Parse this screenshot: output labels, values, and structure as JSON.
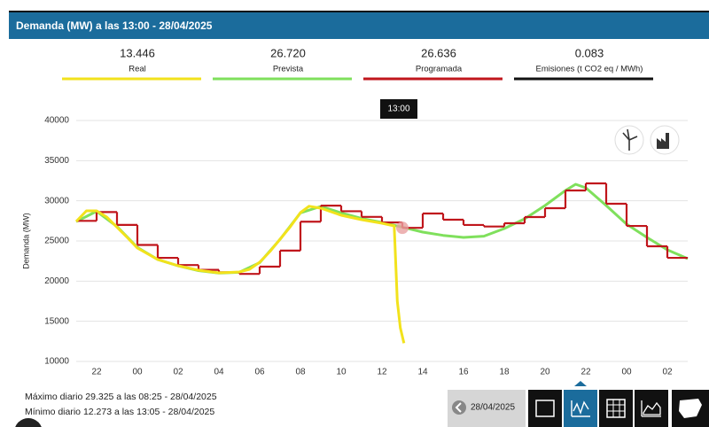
{
  "header": {
    "title": "Demanda (MW) a las 13:00 - 28/04/2025"
  },
  "chart_data": {
    "type": "line",
    "y_label": "Demanda (MW)",
    "tooltip": "13:00",
    "emissions": {
      "name": "Emisiones (t CO2 eq / MWh)",
      "current": "0.083",
      "color": "#111111"
    },
    "xlim": [
      21,
      51
    ],
    "xticks": [
      {
        "value": 22,
        "label": "22"
      },
      {
        "value": 24,
        "label": "00"
      },
      {
        "value": 26,
        "label": "02"
      },
      {
        "value": 28,
        "label": "04"
      },
      {
        "value": 30,
        "label": "06"
      },
      {
        "value": 32,
        "label": "08"
      },
      {
        "value": 34,
        "label": "10"
      },
      {
        "value": 36,
        "label": "12"
      },
      {
        "value": 38,
        "label": "14"
      },
      {
        "value": 40,
        "label": "16"
      },
      {
        "value": 42,
        "label": "18"
      },
      {
        "value": 44,
        "label": "20"
      },
      {
        "value": 46,
        "label": "22"
      },
      {
        "value": 48,
        "label": "00"
      },
      {
        "value": 50,
        "label": "02"
      }
    ],
    "ylim": [
      10000,
      40000
    ],
    "yticks": [
      10000,
      15000,
      20000,
      25000,
      30000,
      35000,
      40000
    ],
    "grid": true,
    "series": [
      {
        "name": "Real",
        "current": "13.446",
        "color": "#f2e21c",
        "style": "line",
        "x": [
          21,
          21.5,
          22,
          22.5,
          23.5,
          24,
          25,
          26,
          27,
          28,
          29,
          29.5,
          30,
          30.5,
          31.5,
          32,
          32.42,
          33,
          34,
          35,
          36,
          36.6,
          36.75,
          36.9,
          37.08
        ],
        "values": [
          27430,
          28750,
          28750,
          27980,
          25440,
          24120,
          22690,
          21910,
          21360,
          21030,
          21140,
          21470,
          22350,
          23680,
          26760,
          28530,
          29325,
          29080,
          28200,
          27650,
          27210,
          26870,
          17500,
          14190,
          12273
        ]
      },
      {
        "name": "Prevista",
        "current": "26.720",
        "color": "#7fe05c",
        "style": "line",
        "x": [
          21,
          22,
          23,
          24,
          25,
          26,
          27,
          28,
          29,
          30,
          31,
          32,
          33,
          34,
          35,
          36,
          37,
          38,
          39,
          40,
          41,
          42,
          43,
          44,
          45,
          45.5,
          46,
          47,
          48,
          49,
          50,
          51
        ],
        "values": [
          27400,
          28700,
          26800,
          24200,
          22700,
          21900,
          21300,
          21000,
          21100,
          22300,
          25200,
          28500,
          29300,
          28500,
          27800,
          27300,
          26720,
          26100,
          25700,
          25440,
          25600,
          26540,
          27760,
          29410,
          31290,
          32060,
          31620,
          29410,
          27100,
          25440,
          23900,
          22790
        ]
      },
      {
        "name": "Programada",
        "current": "26.636",
        "color": "#c0161c",
        "style": "step",
        "x": [
          21,
          22,
          23,
          24,
          25,
          26,
          27,
          28,
          29,
          30,
          31,
          32,
          33,
          34,
          35,
          36,
          37,
          38,
          39,
          40,
          41,
          42,
          43,
          44,
          45,
          46,
          47,
          48,
          49,
          50
        ],
        "values": [
          27500,
          28600,
          27000,
          24500,
          22900,
          22000,
          21400,
          21100,
          20900,
          21800,
          23800,
          27400,
          29400,
          28700,
          28000,
          27300,
          26636,
          28420,
          27650,
          26990,
          26800,
          27210,
          27980,
          29080,
          31290,
          32170,
          29630,
          26870,
          24340,
          22900
        ]
      }
    ]
  },
  "footer": {
    "max": "Máximo diario 29.325 a las 08:25 - 28/04/2025",
    "min": "Mínimo diario 12.273 a las 13:05 - 28/04/2025",
    "date": "28/04/2025"
  }
}
